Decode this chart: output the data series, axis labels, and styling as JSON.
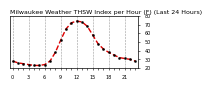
{
  "title": "Milwaukee Weather THSW Index per Hour (F) (Last 24 Hours)",
  "hours": [
    0,
    1,
    2,
    3,
    4,
    5,
    6,
    7,
    8,
    9,
    10,
    11,
    12,
    13,
    14,
    15,
    16,
    17,
    18,
    19,
    20,
    21,
    22,
    23
  ],
  "values": [
    28,
    26,
    25,
    24,
    23,
    23,
    24,
    28,
    38,
    52,
    65,
    72,
    74,
    73,
    68,
    58,
    48,
    42,
    38,
    35,
    32,
    31,
    30,
    28
  ],
  "line_color": "#dd0000",
  "marker_color": "#000000",
  "bg_color": "#ffffff",
  "grid_color": "#999999",
  "ylim_min": 20,
  "ylim_max": 80,
  "yticks": [
    20,
    30,
    40,
    50,
    60,
    70,
    80
  ],
  "ytick_labels": [
    "20",
    "30",
    "40",
    "50",
    "60",
    "70",
    "80"
  ],
  "title_fontsize": 4.5,
  "tick_fontsize": 3.5,
  "line_width": 1.0,
  "marker_size": 1.5,
  "grid_ticks": [
    0,
    3,
    6,
    9,
    12,
    15,
    18,
    21
  ]
}
